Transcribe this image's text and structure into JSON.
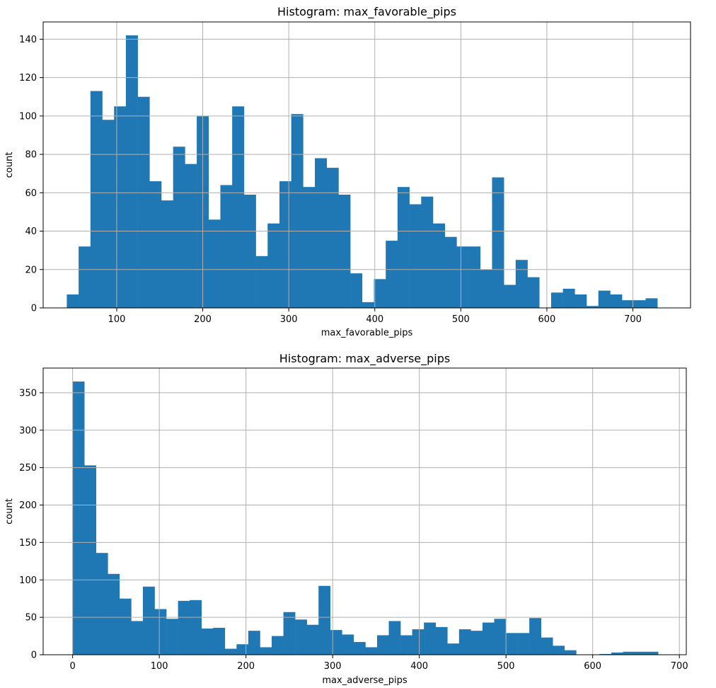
{
  "chart_data": [
    {
      "type": "bar",
      "title": "Histogram: max_favorable_pips",
      "xlabel": "max_favorable_pips",
      "ylabel": "count",
      "grid": true,
      "color": "#1f77b4",
      "xlim": [
        14.5,
        767
      ],
      "ylim": [
        0,
        149
      ],
      "xticks": [
        100,
        200,
        300,
        400,
        500,
        600,
        700
      ],
      "yticks": [
        0,
        20,
        40,
        60,
        80,
        100,
        120,
        140
      ],
      "bin_start": 42,
      "bin_width": 13.73,
      "values": [
        7,
        32,
        113,
        98,
        105,
        142,
        110,
        66,
        56,
        84,
        75,
        100,
        46,
        64,
        105,
        59,
        27,
        44,
        66,
        101,
        63,
        78,
        73,
        59,
        18,
        3,
        15,
        35,
        63,
        54,
        58,
        44,
        37,
        32,
        32,
        20,
        68,
        12,
        25,
        16,
        0,
        8,
        10,
        7,
        1,
        9,
        7,
        4,
        4,
        5
      ]
    },
    {
      "type": "bar",
      "title": "Histogram: max_adverse_pips",
      "xlabel": "max_adverse_pips",
      "ylabel": "count",
      "grid": true,
      "color": "#1f77b4",
      "xlim": [
        -34,
        708
      ],
      "ylim": [
        0,
        383
      ],
      "xticks": [
        0,
        100,
        200,
        300,
        400,
        500,
        600,
        700
      ],
      "yticks": [
        0,
        50,
        100,
        150,
        200,
        250,
        300,
        350
      ],
      "bin_start": 0,
      "bin_width": 13.51,
      "values": [
        365,
        253,
        136,
        108,
        75,
        45,
        91,
        61,
        48,
        72,
        73,
        35,
        36,
        8,
        14,
        32,
        10,
        25,
        57,
        47,
        40,
        92,
        33,
        27,
        17,
        10,
        26,
        45,
        26,
        34,
        43,
        37,
        15,
        34,
        32,
        43,
        48,
        29,
        29,
        49,
        23,
        12,
        6,
        0,
        0,
        1,
        3,
        4,
        4,
        4
      ]
    }
  ]
}
